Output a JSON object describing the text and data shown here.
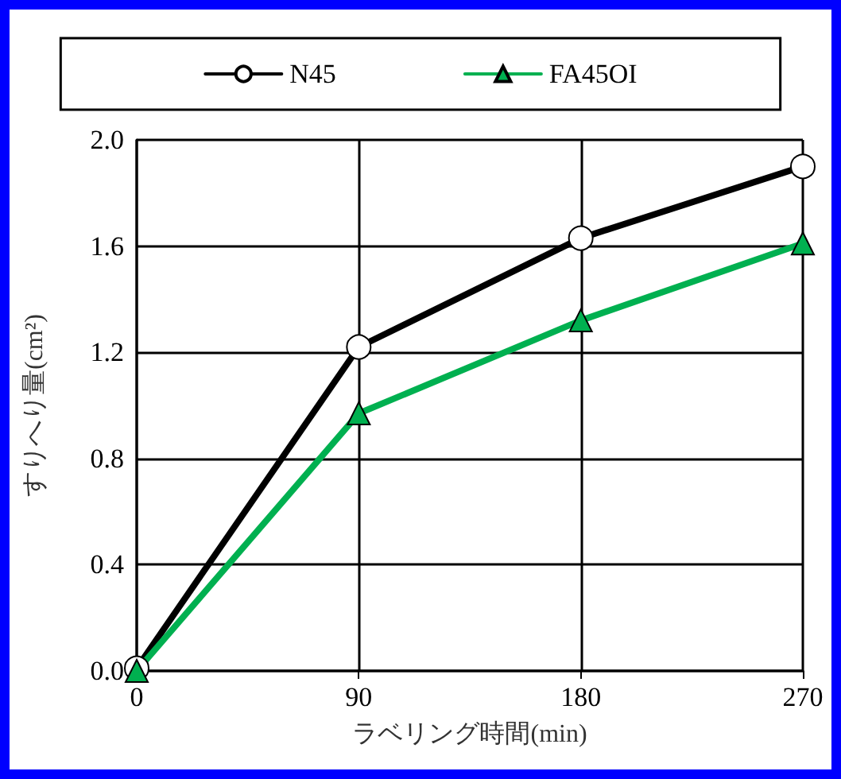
{
  "chart_data": {
    "type": "line",
    "xlabel": "ラベリング時間(min)",
    "ylabel": "すりへり量(cm²)",
    "x": [
      0,
      90,
      180,
      270
    ],
    "xlim": [
      0,
      270
    ],
    "xticks": [
      0,
      90,
      180,
      270
    ],
    "ylim": [
      0,
      2
    ],
    "yticks": [
      {
        "value": 0,
        "label": "0.0"
      },
      0.4,
      0.8,
      1.2,
      1.6,
      {
        "value": 2,
        "label": "2.0"
      }
    ],
    "series": [
      {
        "name": "N45",
        "color": "#000000",
        "marker": "circle",
        "values": [
          0.01,
          1.22,
          1.63,
          1.9
        ]
      },
      {
        "name": "FA45OI",
        "color": "#00b050",
        "marker": "triangle",
        "values": [
          0,
          0.97,
          1.32,
          1.61
        ]
      }
    ],
    "grid": true,
    "legend": "top",
    "line_style": "solid"
  }
}
